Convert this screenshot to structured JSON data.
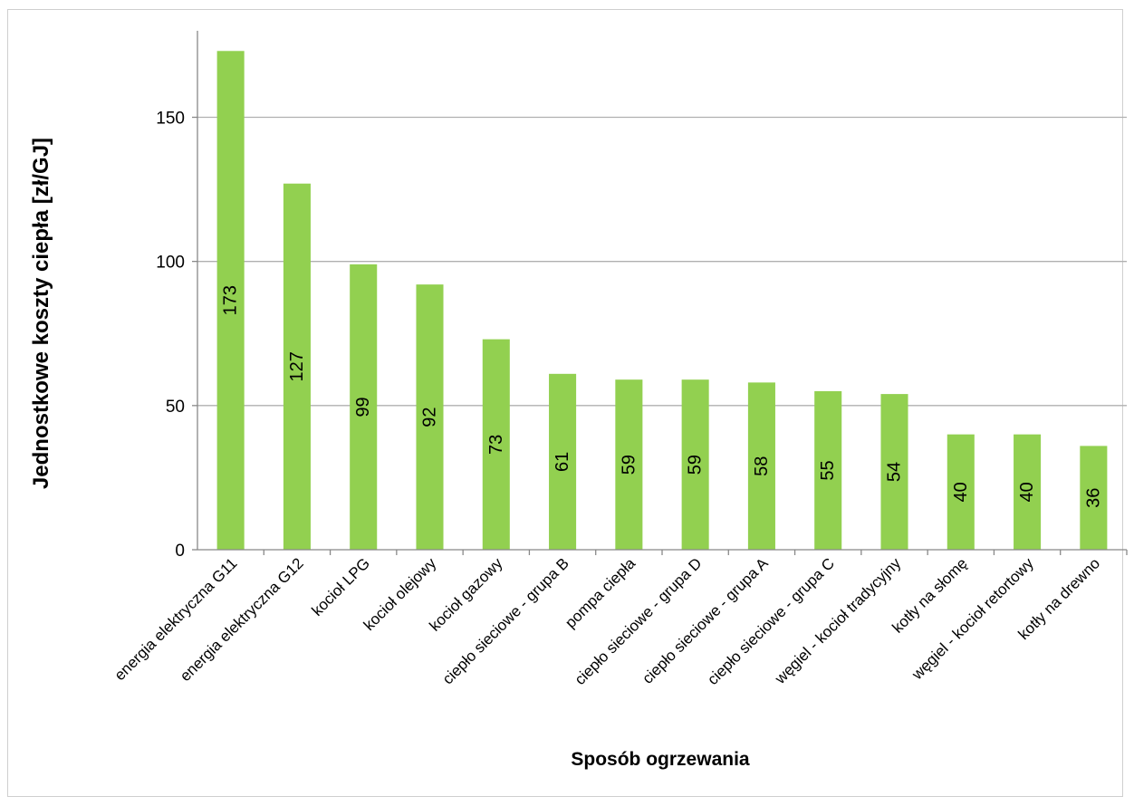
{
  "chart_data": {
    "type": "bar",
    "title": "",
    "xlabel": "Sposób ogrzewania",
    "ylabel": "Jednostkowe koszty ciepła [zł/GJ]",
    "ylim": [
      0,
      180
    ],
    "yticks": [
      0,
      50,
      100,
      150
    ],
    "grid": true,
    "bar_color": "#92d050",
    "categories": [
      "energia elektryczna G11",
      "energia elektryczna G12",
      "kocioł LPG",
      "kocioł olejowy",
      "kocioł gazowy",
      "ciepło sieciowe - grupa B",
      "pompa ciepła",
      "ciepło sieciowe - grupa D",
      "ciepło sieciowe - grupa A",
      "ciepło sieciowe - grupa C",
      "węgiel - kocioł tradycyjny",
      "kotły na słomę",
      "węgiel - kocioł retortowy",
      "kotły na drewno"
    ],
    "values": [
      173,
      127,
      99,
      92,
      73,
      61,
      59,
      59,
      58,
      55,
      54,
      40,
      40,
      36
    ],
    "data_labels": [
      "173",
      "127",
      "99",
      "92",
      "73",
      "61",
      "59",
      "59",
      "58",
      "55",
      "54",
      "40",
      "40",
      "36"
    ]
  }
}
